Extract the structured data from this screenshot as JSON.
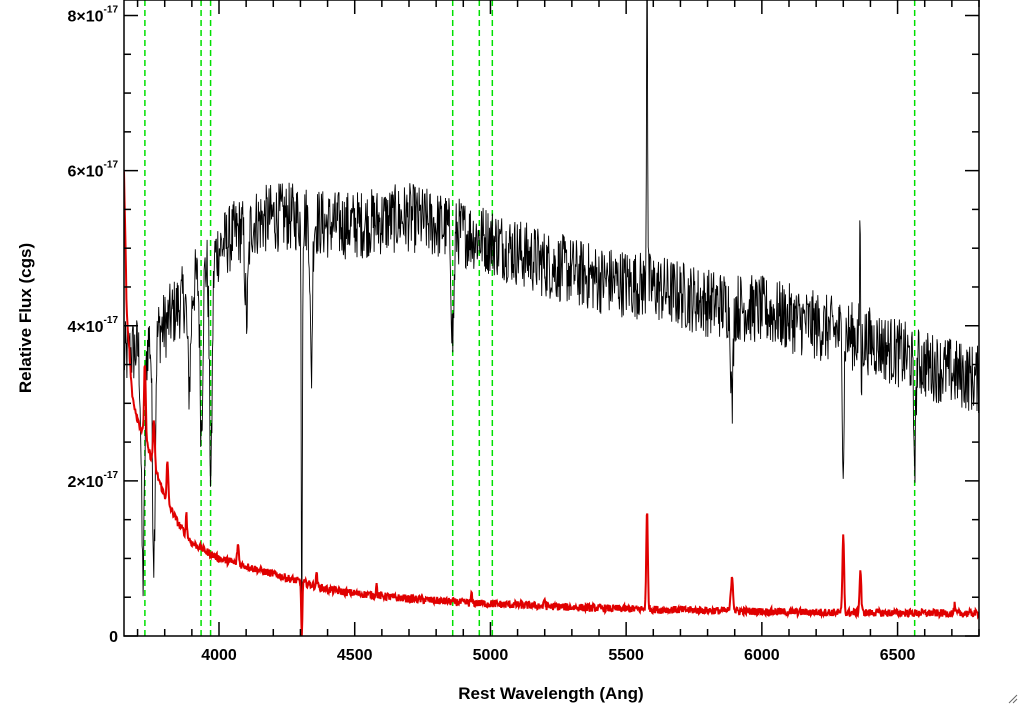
{
  "chart_data": {
    "type": "line",
    "xlabel": "Rest Wavelength (Ang)",
    "ylabel": "Relative Flux (cgs)",
    "xlim": [
      3650,
      6800
    ],
    "ylim": [
      0,
      8.2e-17
    ],
    "x_ticks": [
      {
        "value": 4000,
        "label": "4000"
      },
      {
        "value": 4500,
        "label": "4500"
      },
      {
        "value": 5000,
        "label": "5000"
      },
      {
        "value": 5500,
        "label": "5500"
      },
      {
        "value": 6000,
        "label": "6000"
      },
      {
        "value": 6500,
        "label": "6500"
      }
    ],
    "y_ticks": [
      {
        "value": 0,
        "mantissa": "0",
        "exponent": ""
      },
      {
        "value": 2e-17,
        "mantissa": "2×10",
        "exponent": "-17"
      },
      {
        "value": 4e-17,
        "mantissa": "4×10",
        "exponent": "-17"
      },
      {
        "value": 6e-17,
        "mantissa": "6×10",
        "exponent": "-17"
      },
      {
        "value": 8e-17,
        "mantissa": "8×10",
        "exponent": "-17"
      }
    ],
    "x_minor_step": 100,
    "y_minor_step": 5e-18,
    "grid": false,
    "vertical_markers": {
      "color": "#00e000",
      "style": "dashed",
      "x": [
        3727,
        3934,
        3969,
        4861,
        4959,
        5007,
        6563
      ]
    },
    "series": [
      {
        "color": "#000000",
        "continuum_points": [
          [
            3650,
            3.6e-17
          ],
          [
            3700,
            3.7e-17
          ],
          [
            3800,
            4e-17
          ],
          [
            3900,
            4.5e-17
          ],
          [
            4000,
            5e-17
          ],
          [
            4100,
            5.3e-17
          ],
          [
            4200,
            5.4e-17
          ],
          [
            4300,
            5.4e-17
          ],
          [
            4400,
            5.3e-17
          ],
          [
            4500,
            5.3e-17
          ],
          [
            4600,
            5.35e-17
          ],
          [
            4700,
            5.4e-17
          ],
          [
            4800,
            5.3e-17
          ],
          [
            4900,
            5.2e-17
          ],
          [
            5000,
            5.1e-17
          ],
          [
            5200,
            4.8e-17
          ],
          [
            5400,
            4.6e-17
          ],
          [
            5600,
            4.5e-17
          ],
          [
            5800,
            4.3e-17
          ],
          [
            6000,
            4.2e-17
          ],
          [
            6200,
            4e-17
          ],
          [
            6400,
            3.8e-17
          ],
          [
            6600,
            3.5e-17
          ],
          [
            6800,
            3.3e-17
          ]
        ],
        "noise_amplitude": 4.5e-18,
        "features": [
          {
            "x": 3720,
            "depth": -3e-17,
            "width": 6
          },
          {
            "x": 3760,
            "depth": -2.8e-17,
            "width": 5
          },
          {
            "x": 3890,
            "depth": -1.2e-17,
            "width": 6
          },
          {
            "x": 3935,
            "depth": -2e-17,
            "width": 5
          },
          {
            "x": 3970,
            "depth": -2.8e-17,
            "width": 5
          },
          {
            "x": 4102,
            "depth": -1.2e-17,
            "width": 6
          },
          {
            "x": 4305,
            "depth": -5.4e-17,
            "width": 2
          },
          {
            "x": 4340,
            "depth": -2e-17,
            "width": 4
          },
          {
            "x": 4861,
            "depth": -1.4e-17,
            "width": 5
          },
          {
            "x": 5577,
            "depth": 4.5e-17,
            "width": 2
          },
          {
            "x": 5890,
            "depth": -1.3e-17,
            "width": 4
          },
          {
            "x": 6300,
            "depth": -1.6e-17,
            "width": 3
          },
          {
            "x": 6363,
            "depth": 2.4e-17,
            "width": 2
          },
          {
            "x": 6365,
            "depth": -1.8e-17,
            "width": 2
          },
          {
            "x": 6563,
            "depth": -1.2e-17,
            "width": 4
          }
        ]
      },
      {
        "color": "#e00000",
        "continuum_points": [
          [
            3650,
            6e-17
          ],
          [
            3660,
            4.2e-17
          ],
          [
            3680,
            3.1e-17
          ],
          [
            3700,
            2.8e-17
          ],
          [
            3750,
            2.3e-17
          ],
          [
            3800,
            1.8e-17
          ],
          [
            3850,
            1.45e-17
          ],
          [
            3900,
            1.2e-17
          ],
          [
            4000,
            1e-17
          ],
          [
            4100,
            9e-18
          ],
          [
            4200,
            8e-18
          ],
          [
            4300,
            7e-18
          ],
          [
            4400,
            6e-18
          ],
          [
            4500,
            5.5e-18
          ],
          [
            4700,
            4.8e-18
          ],
          [
            4900,
            4.3e-18
          ],
          [
            5100,
            4e-18
          ],
          [
            5300,
            3.7e-18
          ],
          [
            5500,
            3.5e-18
          ],
          [
            5800,
            3.3e-18
          ],
          [
            6100,
            3.1e-18
          ],
          [
            6400,
            3e-18
          ],
          [
            6800,
            2.9e-18
          ]
        ],
        "noise_amplitude": 5e-19,
        "features": [
          {
            "x": 3727,
            "depth": 1e-17,
            "width": 3
          },
          {
            "x": 3760,
            "depth": 6e-18,
            "width": 3
          },
          {
            "x": 3810,
            "depth": 5e-18,
            "width": 3
          },
          {
            "x": 3880,
            "depth": 3e-18,
            "width": 2
          },
          {
            "x": 4070,
            "depth": 2.5e-18,
            "width": 3
          },
          {
            "x": 4305,
            "depth": -7.5e-18,
            "width": 2
          },
          {
            "x": 4360,
            "depth": 2e-18,
            "width": 2
          },
          {
            "x": 4580,
            "depth": 1.5e-18,
            "width": 2
          },
          {
            "x": 4930,
            "depth": 1.2e-18,
            "width": 2
          },
          {
            "x": 5200,
            "depth": 1e-18,
            "width": 2
          },
          {
            "x": 5577,
            "depth": 1.25e-17,
            "width": 3
          },
          {
            "x": 5890,
            "depth": 4.5e-18,
            "width": 4
          },
          {
            "x": 6300,
            "depth": 1e-17,
            "width": 3
          },
          {
            "x": 6363,
            "depth": 5.5e-18,
            "width": 3
          },
          {
            "x": 6710,
            "depth": 1e-18,
            "width": 2
          }
        ]
      }
    ]
  }
}
